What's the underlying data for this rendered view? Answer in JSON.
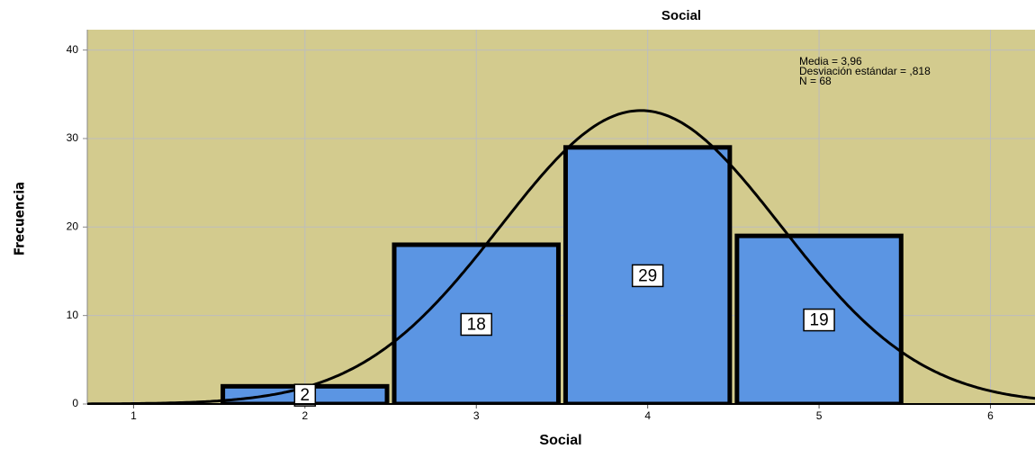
{
  "chart_data": {
    "type": "histogram",
    "title": "Social",
    "x_label": "Social",
    "y_label": "Frecuencia",
    "bins": [
      1.5,
      2.5,
      3.5,
      4.5,
      5.5
    ],
    "values": [
      2,
      18,
      29,
      19
    ],
    "color": "#5b95e3",
    "xlim": [
      0.73,
      6.26
    ],
    "xticks": [
      1,
      2,
      3,
      4,
      5,
      6
    ],
    "ylim": [
      0,
      42.3
    ],
    "yticks": [
      0,
      10,
      20,
      30,
      40
    ],
    "grid": true,
    "stats": {
      "values": [
        3.96,
        0.818,
        68
      ],
      "value_labels": [
        "Media = 3,96",
        "Desviación estándar = ,818",
        "N = 68"
      ]
    }
  }
}
